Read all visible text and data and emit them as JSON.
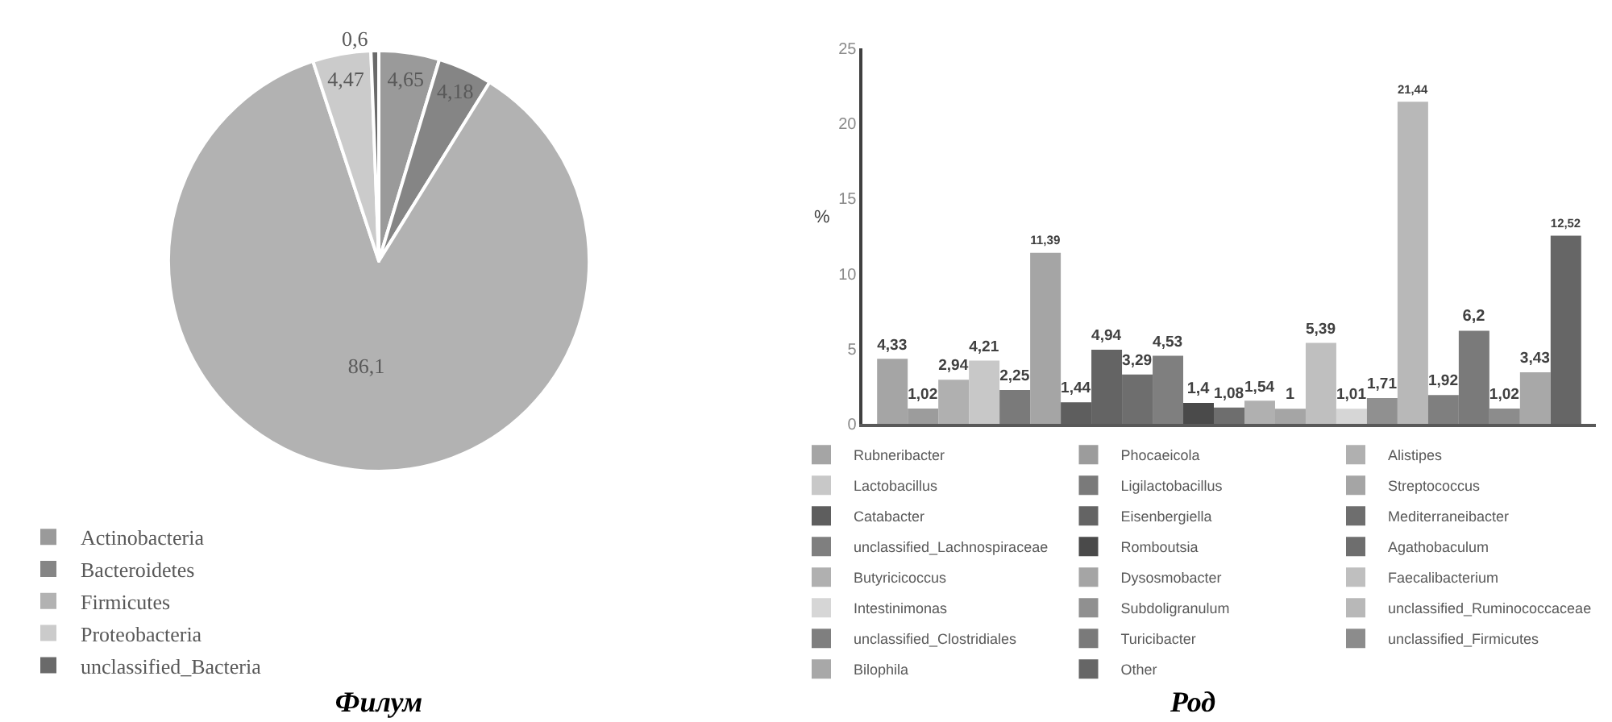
{
  "chart_data": [
    {
      "type": "pie",
      "title": "Филум",
      "legend": "bottom",
      "categories": [
        "Actinobacteria",
        "Bacteroidetes",
        "Firmicutes",
        "Proteobacteria",
        "unclassified_Bacteria"
      ],
      "values": [
        4.65,
        4.18,
        86.1,
        4.47,
        0.6
      ],
      "value_labels": [
        "4,65",
        "4,18",
        "86,1",
        "4,47",
        "0,6"
      ],
      "colors": [
        "#9a9a9a",
        "#858585",
        "#b2b2b2",
        "#cbcbcb",
        "#6a6a6a"
      ]
    },
    {
      "type": "bar",
      "title": "Род",
      "ylabel": "%",
      "legend": "bottom",
      "categories": [
        null
      ],
      "ylim": [
        0,
        25
      ],
      "yticks": [
        0,
        5,
        10,
        15,
        20,
        25
      ],
      "series": [
        {
          "name": "Rubneribacter",
          "color": "#a5a5a5",
          "values": [
            4.33
          ],
          "value_labels": [
            "4,33"
          ]
        },
        {
          "name": "Phocaeicola",
          "color": "#9c9c9c",
          "values": [
            1.02
          ],
          "value_labels": [
            "1,02"
          ]
        },
        {
          "name": "Alistipes",
          "color": "#b0b0b0",
          "values": [
            2.94
          ],
          "value_labels": [
            "2,94"
          ]
        },
        {
          "name": "Lactobacillus",
          "color": "#c8c8c8",
          "values": [
            4.21
          ],
          "value_labels": [
            "4,21"
          ]
        },
        {
          "name": "Ligilactobacillus",
          "color": "#7a7a7a",
          "values": [
            2.25
          ],
          "value_labels": [
            "2,25"
          ]
        },
        {
          "name": "Streptococcus",
          "color": "#a5a5a5",
          "values": [
            11.39
          ],
          "value_labels": [
            "11,39"
          ]
        },
        {
          "name": "Catabacter",
          "color": "#5e5e5e",
          "values": [
            1.44
          ],
          "value_labels": [
            "1,44"
          ]
        },
        {
          "name": "Eisenbergiella",
          "color": "#646464",
          "values": [
            4.94
          ],
          "value_labels": [
            "4,94"
          ]
        },
        {
          "name": "Mediterraneibacter",
          "color": "#6e6e6e",
          "values": [
            3.29
          ],
          "value_labels": [
            "3,29"
          ]
        },
        {
          "name": "unclassified_Lachnospiraceae",
          "color": "#7f7f7f",
          "values": [
            4.53
          ],
          "value_labels": [
            "4,53"
          ]
        },
        {
          "name": "Romboutsia",
          "color": "#4a4a4a",
          "values": [
            1.4
          ],
          "value_labels": [
            "1,4"
          ]
        },
        {
          "name": "Agathobaculum",
          "color": "#6e6e6e",
          "values": [
            1.08
          ],
          "value_labels": [
            "1,08"
          ]
        },
        {
          "name": "Butyricicoccus",
          "color": "#b0b0b0",
          "values": [
            1.54
          ],
          "value_labels": [
            "1,54"
          ]
        },
        {
          "name": "Dysosmobacter",
          "color": "#a5a5a5",
          "values": [
            1
          ],
          "value_labels": [
            "1"
          ]
        },
        {
          "name": "Faecalibacterium",
          "color": "#bfbfbf",
          "values": [
            5.39
          ],
          "value_labels": [
            "5,39"
          ]
        },
        {
          "name": "Intestinimonas",
          "color": "#d6d6d6",
          "values": [
            1.01
          ],
          "value_labels": [
            "1,01"
          ]
        },
        {
          "name": "Subdoligranulum",
          "color": "#909090",
          "values": [
            1.71
          ],
          "value_labels": [
            "1,71"
          ]
        },
        {
          "name": "unclassified_Ruminococcaceae",
          "color": "#b8b8b8",
          "values": [
            21.44
          ],
          "value_labels": [
            "21,44"
          ]
        },
        {
          "name": "unclassified_Clostridiales",
          "color": "#7f7f7f",
          "values": [
            1.92
          ],
          "value_labels": [
            "1,92"
          ]
        },
        {
          "name": "Turicibacter",
          "color": "#7a7a7a",
          "values": [
            6.2
          ],
          "value_labels": [
            "6,2"
          ]
        },
        {
          "name": "unclassified_Firmicutes",
          "color": "#8c8c8c",
          "values": [
            1.02
          ],
          "value_labels": [
            "1,02"
          ]
        },
        {
          "name": "Bilophila",
          "color": "#a8a8a8",
          "values": [
            3.43
          ],
          "value_labels": [
            "3,43"
          ]
        },
        {
          "name": "Other",
          "color": "#666666",
          "values": [
            12.52
          ],
          "value_labels": [
            "12,52"
          ]
        }
      ]
    }
  ]
}
